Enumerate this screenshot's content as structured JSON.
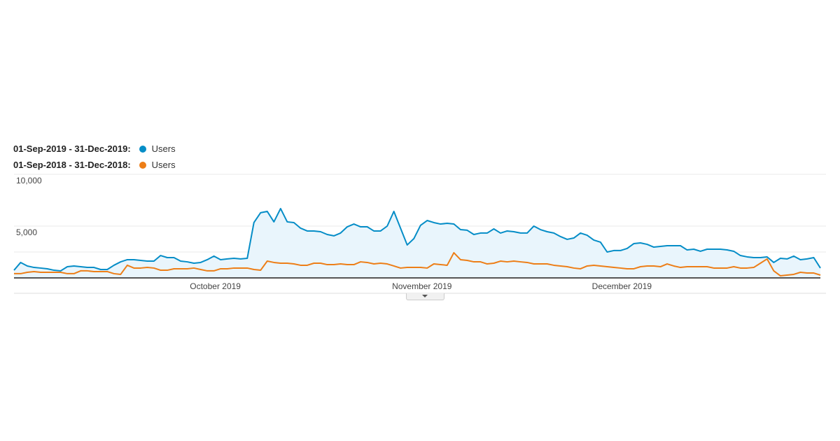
{
  "chart_data": {
    "type": "line",
    "title": "",
    "xlabel": "",
    "ylabel": "",
    "ylim": [
      0,
      10000
    ],
    "y_ticks": [
      "10,000",
      "5,000"
    ],
    "y_tick_values": [
      10000,
      5000
    ],
    "minor_gridlines": [
      2500
    ],
    "x_tick_labels": [
      "October 2019",
      "November 2019",
      "December 2019"
    ],
    "x_tick_days": [
      30,
      61,
      91
    ],
    "x_range": [
      "01-Sep-2019",
      "31-Dec-2019"
    ],
    "grid": true,
    "legend_placement": "top-left",
    "series": [
      {
        "range": "01-Sep-2019 - 31-Dec-2019:",
        "name": "Users",
        "color": "#058dc7",
        "area_fill": "#e9f5fc",
        "values": [
          740,
          1490,
          1150,
          1010,
          950,
          880,
          740,
          680,
          1080,
          1150,
          1080,
          1010,
          1010,
          810,
          810,
          1220,
          1550,
          1760,
          1760,
          1690,
          1620,
          1620,
          2160,
          1960,
          1960,
          1620,
          1550,
          1420,
          1490,
          1760,
          2100,
          1760,
          1830,
          1890,
          1830,
          1890,
          5340,
          6290,
          6420,
          5410,
          6690,
          5410,
          5340,
          4800,
          4530,
          4530,
          4460,
          4190,
          4060,
          4330,
          4930,
          5200,
          4930,
          4930,
          4530,
          4530,
          5000,
          6420,
          4800,
          3180,
          3790,
          5070,
          5540,
          5340,
          5200,
          5270,
          5200,
          4660,
          4600,
          4190,
          4330,
          4330,
          4730,
          4330,
          4530,
          4460,
          4330,
          4330,
          5000,
          4660,
          4460,
          4330,
          3990,
          3720,
          3850,
          4330,
          4120,
          3650,
          3450,
          2500,
          2640,
          2640,
          2840,
          3310,
          3380,
          3240,
          2970,
          3040,
          3110,
          3110,
          3110,
          2700,
          2770,
          2570,
          2770,
          2770,
          2770,
          2700,
          2570,
          2160,
          2030,
          1960,
          1960,
          2030,
          1490,
          1890,
          1830,
          2100,
          1760,
          1830,
          1960,
          950
        ]
      },
      {
        "range": "01-Sep-2018 - 31-Dec-2018:",
        "name": "Users",
        "color": "#ed7e17",
        "values": [
          410,
          410,
          540,
          610,
          540,
          540,
          540,
          540,
          410,
          410,
          680,
          680,
          610,
          610,
          610,
          410,
          340,
          1220,
          950,
          950,
          1010,
          950,
          740,
          740,
          880,
          880,
          880,
          950,
          810,
          680,
          680,
          880,
          880,
          950,
          950,
          950,
          810,
          740,
          1620,
          1490,
          1420,
          1420,
          1350,
          1220,
          1220,
          1420,
          1420,
          1280,
          1280,
          1350,
          1280,
          1280,
          1550,
          1490,
          1350,
          1420,
          1350,
          1150,
          950,
          1010,
          1010,
          1010,
          950,
          1350,
          1280,
          1220,
          2430,
          1760,
          1690,
          1550,
          1550,
          1350,
          1420,
          1620,
          1550,
          1620,
          1550,
          1490,
          1350,
          1350,
          1350,
          1220,
          1150,
          1080,
          950,
          880,
          1150,
          1220,
          1150,
          1080,
          1010,
          950,
          880,
          880,
          1080,
          1150,
          1150,
          1080,
          1350,
          1150,
          1010,
          1080,
          1080,
          1080,
          1080,
          950,
          950,
          950,
          1080,
          950,
          950,
          1010,
          1420,
          1830,
          680,
          200,
          270,
          340,
          540,
          470,
          470,
          270
        ]
      }
    ]
  }
}
